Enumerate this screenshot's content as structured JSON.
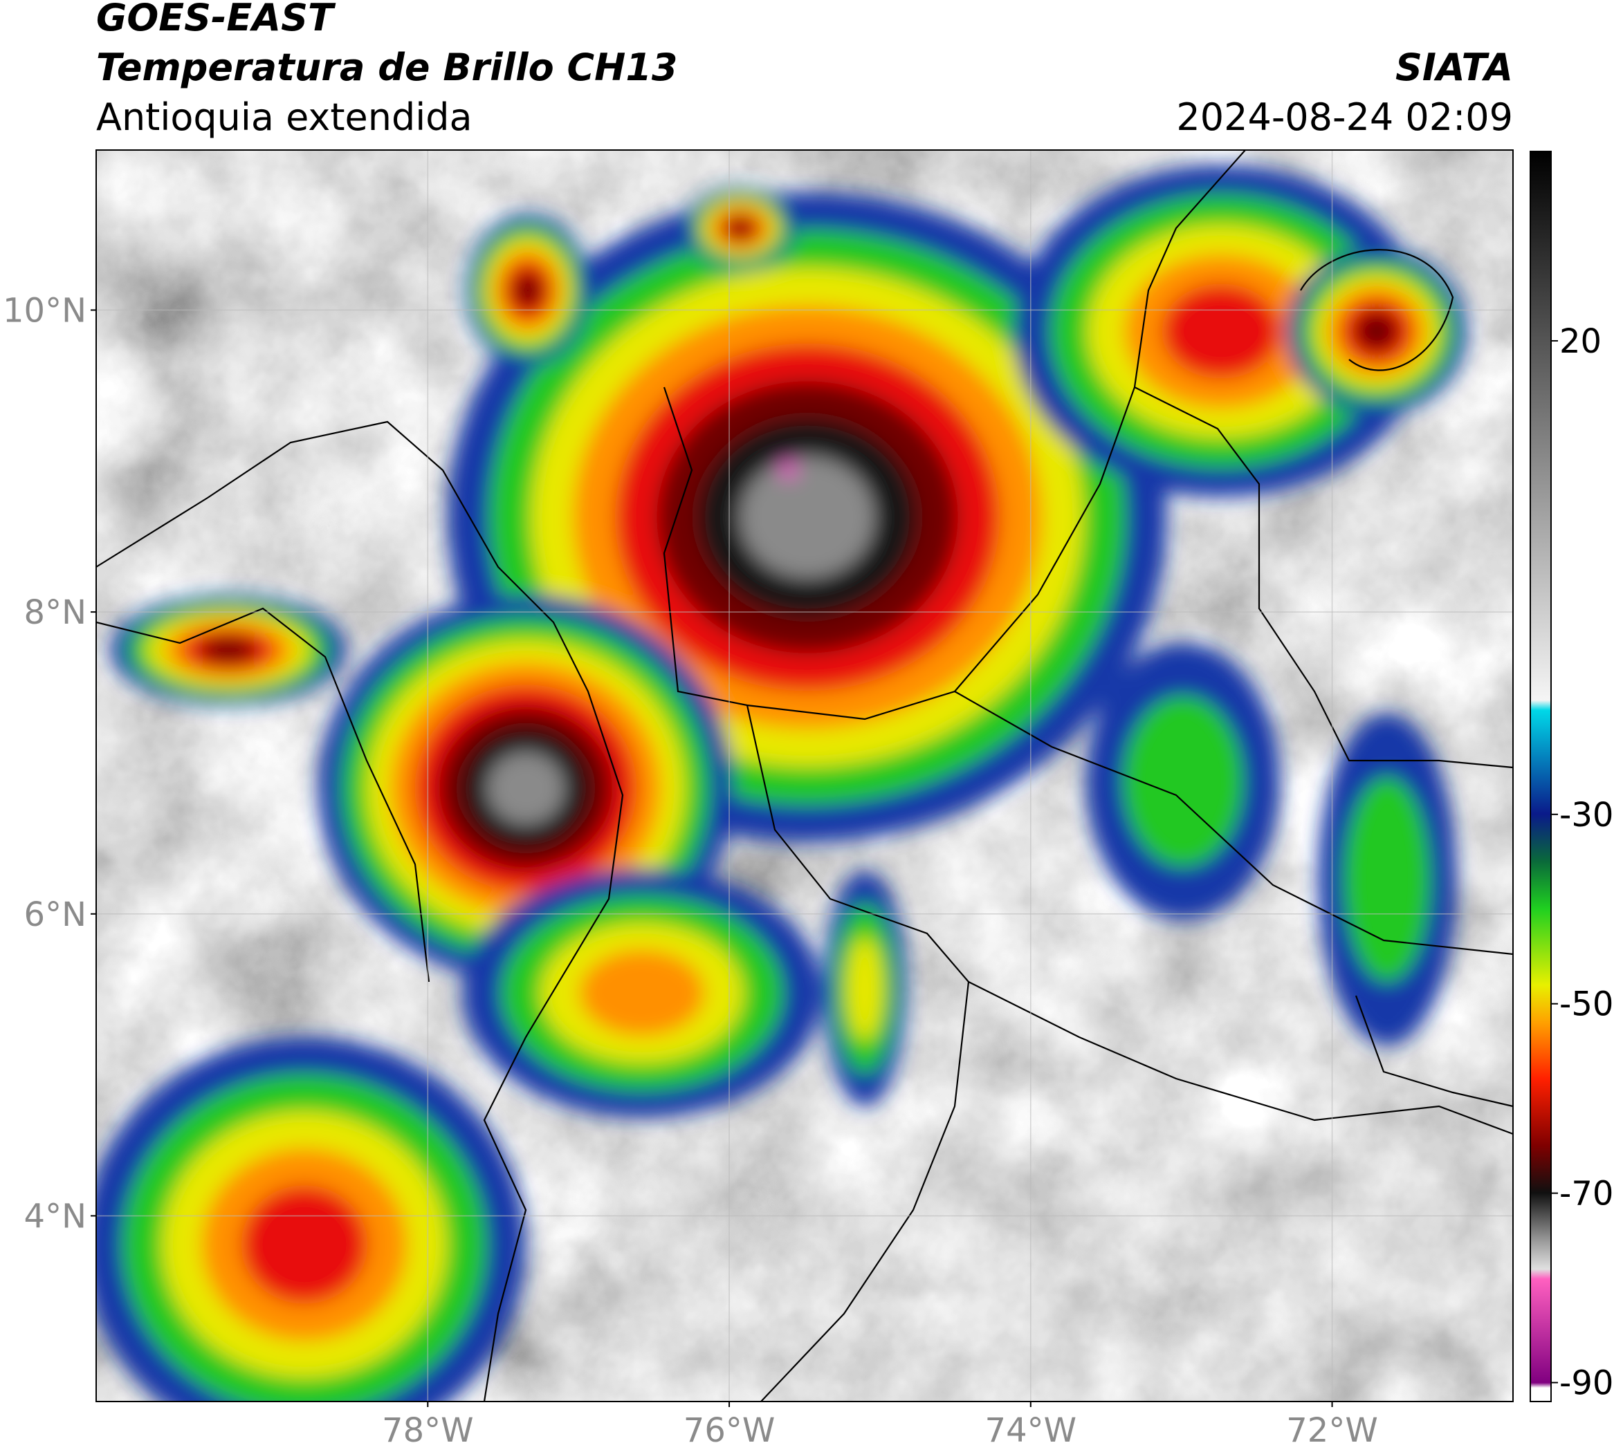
{
  "header": {
    "title": "GOES-EAST",
    "subtitle": "Temperatura de Brillo CH13",
    "region": "Antioquia extendida",
    "source": "SIATA",
    "datetime": "2024-08-24 02:09"
  },
  "map": {
    "xlim": [
      -80.2,
      -70.8
    ],
    "ylim": [
      2.77,
      11.06
    ],
    "xticks": [
      {
        "value": -78,
        "label": "78°W"
      },
      {
        "value": -76,
        "label": "76°W"
      },
      {
        "value": -74,
        "label": "74°W"
      },
      {
        "value": -72,
        "label": "72°W"
      }
    ],
    "yticks": [
      {
        "value": 10,
        "label": "10°N"
      },
      {
        "value": 8,
        "label": "8°N"
      },
      {
        "value": 6,
        "label": "6°N"
      },
      {
        "value": 4,
        "label": "4°N"
      }
    ],
    "grid": true
  },
  "colorbar": {
    "lim": [
      -92,
      40
    ],
    "ticks": [
      20,
      -30,
      -50,
      -70,
      -90
    ]
  }
}
